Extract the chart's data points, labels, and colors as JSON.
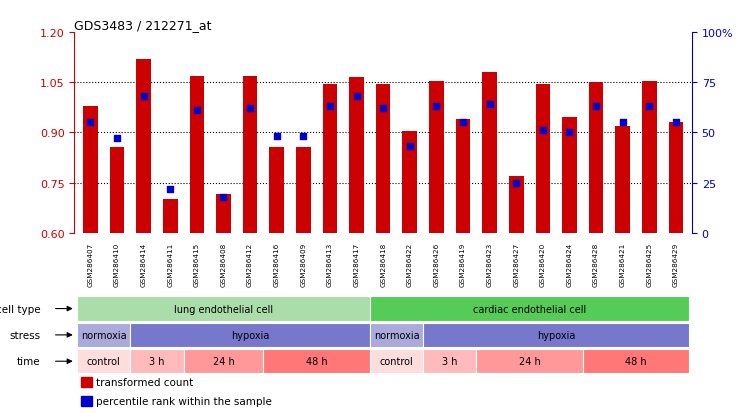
{
  "title": "GDS3483 / 212271_at",
  "samples": [
    "GSM286407",
    "GSM286410",
    "GSM286414",
    "GSM286411",
    "GSM286415",
    "GSM286408",
    "GSM286412",
    "GSM286416",
    "GSM286409",
    "GSM286413",
    "GSM286417",
    "GSM286418",
    "GSM286422",
    "GSM286426",
    "GSM286419",
    "GSM286423",
    "GSM286427",
    "GSM286420",
    "GSM286424",
    "GSM286428",
    "GSM286421",
    "GSM286425",
    "GSM286429"
  ],
  "red_values": [
    0.98,
    0.855,
    1.12,
    0.7,
    1.07,
    0.715,
    1.07,
    0.855,
    0.855,
    1.045,
    1.065,
    1.045,
    0.905,
    1.055,
    0.94,
    1.08,
    0.77,
    1.045,
    0.945,
    1.05,
    0.92,
    1.055,
    0.93
  ],
  "blue_percentile": [
    55,
    47,
    68,
    22,
    61,
    18,
    62,
    48,
    48,
    63,
    68,
    62,
    43,
    63,
    55,
    64,
    25,
    51,
    50,
    63,
    55,
    63,
    55
  ],
  "ylim_left": [
    0.6,
    1.2
  ],
  "ylim_right": [
    0,
    100
  ],
  "yticks_left": [
    0.6,
    0.75,
    0.9,
    1.05,
    1.2
  ],
  "yticks_right": [
    0,
    25,
    50,
    75,
    100
  ],
  "ytick_labels_right": [
    "0",
    "25",
    "50",
    "75",
    "100%"
  ],
  "cell_type_groups": [
    {
      "label": "lung endothelial cell",
      "start": 0,
      "end": 11,
      "color": "#aaddaa"
    },
    {
      "label": "cardiac endothelial cell",
      "start": 11,
      "end": 23,
      "color": "#55cc55"
    }
  ],
  "stress_groups": [
    {
      "label": "normoxia",
      "start": 0,
      "end": 2,
      "color": "#aaaadd"
    },
    {
      "label": "hypoxia",
      "start": 2,
      "end": 11,
      "color": "#7777cc"
    },
    {
      "label": "normoxia",
      "start": 11,
      "end": 13,
      "color": "#aaaadd"
    },
    {
      "label": "hypoxia",
      "start": 13,
      "end": 23,
      "color": "#7777cc"
    }
  ],
  "time_groups": [
    {
      "label": "control",
      "start": 0,
      "end": 2,
      "color": "#ffdddd"
    },
    {
      "label": "3 h",
      "start": 2,
      "end": 4,
      "color": "#ffbbbb"
    },
    {
      "label": "24 h",
      "start": 4,
      "end": 7,
      "color": "#ff9999"
    },
    {
      "label": "48 h",
      "start": 7,
      "end": 11,
      "color": "#ff7777"
    },
    {
      "label": "control",
      "start": 11,
      "end": 13,
      "color": "#ffdddd"
    },
    {
      "label": "3 h",
      "start": 13,
      "end": 15,
      "color": "#ffbbbb"
    },
    {
      "label": "24 h",
      "start": 15,
      "end": 19,
      "color": "#ff9999"
    },
    {
      "label": "48 h",
      "start": 19,
      "end": 23,
      "color": "#ff7777"
    }
  ],
  "bar_color": "#cc0000",
  "dot_color": "#0000cc",
  "bar_width": 0.55,
  "background_color": "#ffffff",
  "left_label_color": "#cc0000",
  "right_label_color": "#0000cc",
  "row_labels": [
    "cell type",
    "stress",
    "time"
  ],
  "legend_items": [
    {
      "label": "transformed count",
      "color": "#cc0000"
    },
    {
      "label": "percentile rank within the sample",
      "color": "#0000cc"
    }
  ]
}
